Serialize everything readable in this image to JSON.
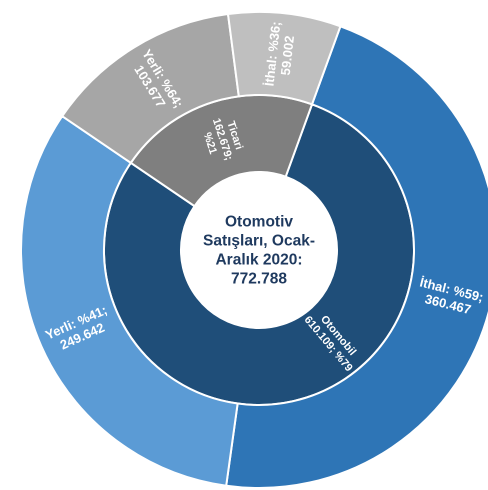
{
  "chart_data": {
    "type": "sunburst",
    "center_label": [
      "Otomotiv",
      "Satışları, Ocak-",
      "Aralık 2020:",
      "772.788"
    ],
    "total": 772788,
    "inner": [
      {
        "name": "Otomobil",
        "value": 610109,
        "percent": 79,
        "label": [
          "Otomobil",
          "610.109; %79"
        ],
        "color": "#1f4e79"
      },
      {
        "name": "Ticari",
        "value": 162679,
        "percent": 21,
        "label": [
          "Ticari",
          "162.679;",
          "%21"
        ],
        "color": "#7f7f7f"
      }
    ],
    "outer": [
      {
        "parent": "Otomobil",
        "name": "İthal",
        "value": 360467,
        "percent": 59,
        "label": [
          "İthal: %59;",
          "360.467"
        ],
        "color": "#2e75b6"
      },
      {
        "parent": "Otomobil",
        "name": "Yerli",
        "value": 249642,
        "percent": 41,
        "label": [
          "Yerli: %41;",
          "249.642"
        ],
        "color": "#5b9bd5"
      },
      {
        "parent": "Ticari",
        "name": "Yerli",
        "value": 103677,
        "percent": 64,
        "label": [
          "Yerli: %64;",
          "103.677"
        ],
        "color": "#a6a6a6"
      },
      {
        "parent": "Ticari",
        "name": "İthal",
        "value": 59002,
        "percent": 36,
        "label": [
          "İthal: %36;",
          "59.002"
        ],
        "color": "#bfbfbf"
      }
    ]
  }
}
